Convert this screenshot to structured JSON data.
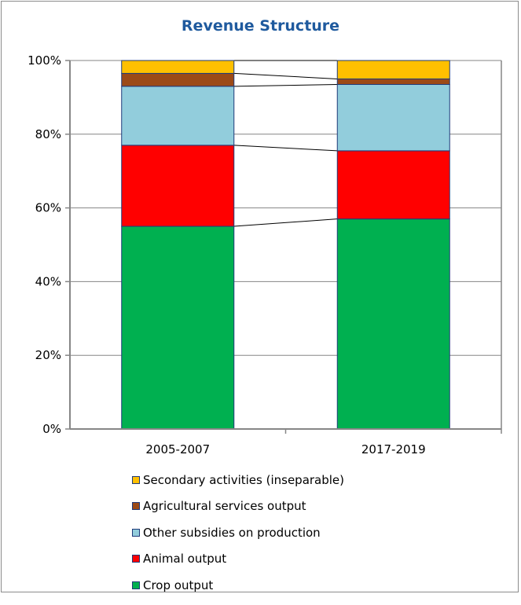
{
  "chart_data": {
    "type": "bar",
    "stacked": true,
    "percent_stacked": true,
    "title": "Revenue Structure",
    "categories": [
      "2005-2007",
      "2017-2019"
    ],
    "series": [
      {
        "name": "Crop output",
        "values": [
          55.0,
          57.0
        ],
        "color": "#00b050"
      },
      {
        "name": "Animal output",
        "values": [
          22.0,
          18.5
        ],
        "color": "#ff0000"
      },
      {
        "name": "Other subsidies on production",
        "values": [
          16.0,
          18.0
        ],
        "color": "#92cddc"
      },
      {
        "name": "Agricultural services output",
        "values": [
          3.5,
          1.5
        ],
        "color": "#9c4a17"
      },
      {
        "name": "Secondary activities (inseparable)",
        "values": [
          3.5,
          5.0
        ],
        "color": "#ffc000"
      }
    ],
    "ylim": [
      0,
      100
    ],
    "yticks": [
      "0%",
      "20%",
      "40%",
      "60%",
      "80%",
      "100%"
    ],
    "grid": true,
    "series_lines": true,
    "legend_position": "bottom"
  }
}
